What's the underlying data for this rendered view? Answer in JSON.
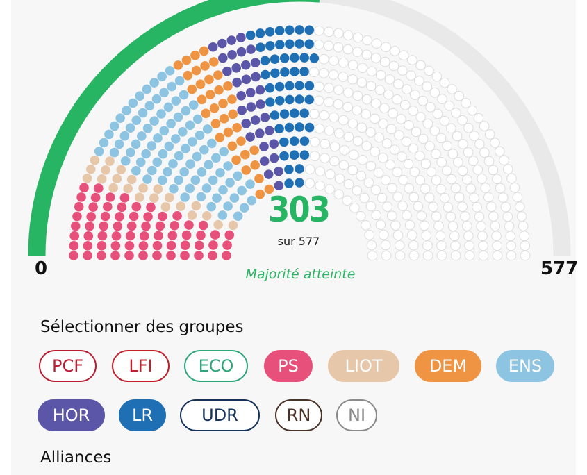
{
  "hemicycle": {
    "total_seats": 577,
    "selected_seats": 303,
    "count_label": "303",
    "sub_label": "sur 577",
    "min_label": "0",
    "max_label": "577",
    "status_label": "Majorité atteinte",
    "progress_fraction": 0.525,
    "majority_fraction": 0.5,
    "colors": {
      "progress": "#27b563",
      "track": "#e9e9e9",
      "empty_seat_stroke": "#dcdcdc",
      "count_text": "#27b563",
      "status_text": "#27b563"
    },
    "selected_groups": [
      {
        "group": "PS",
        "color": "#e8507c",
        "seats": 66
      },
      {
        "group": "LIOT",
        "color": "#e7c7a9",
        "seats": 23
      },
      {
        "group": "ENS",
        "color": "#8dc4e2",
        "seats": 92
      },
      {
        "group": "DEM",
        "color": "#ef9442",
        "seats": 36
      },
      {
        "group": "HOR",
        "color": "#5b56a8",
        "seats": 34
      },
      {
        "group": "LR",
        "color": "#1f6fb5",
        "seats": 52
      }
    ]
  },
  "group_selector": {
    "title": "Sélectionner des groupes",
    "groups": [
      {
        "label": "PCF",
        "color": "#b81d33",
        "selected": false
      },
      {
        "label": "LFI",
        "color": "#c0202b",
        "selected": false
      },
      {
        "label": "ECO",
        "color": "#2fa57a",
        "selected": false
      },
      {
        "label": "PS",
        "color": "#e8507c",
        "selected": true
      },
      {
        "label": "LIOT",
        "color": "#e7c7a9",
        "selected": true
      },
      {
        "label": "DEM",
        "color": "#ef9442",
        "selected": true
      },
      {
        "label": "ENS",
        "color": "#8dc4e2",
        "selected": true
      },
      {
        "label": "HOR",
        "color": "#5b56a8",
        "selected": true
      },
      {
        "label": "LR",
        "color": "#1f6fb5",
        "selected": true
      },
      {
        "label": "UDR",
        "color": "#15325a",
        "selected": false
      },
      {
        "label": "RN",
        "color": "#4a3226",
        "selected": false
      },
      {
        "label": "NI",
        "color": "#8a8a8a",
        "selected": false
      }
    ]
  },
  "alliances": {
    "title": "Alliances"
  }
}
